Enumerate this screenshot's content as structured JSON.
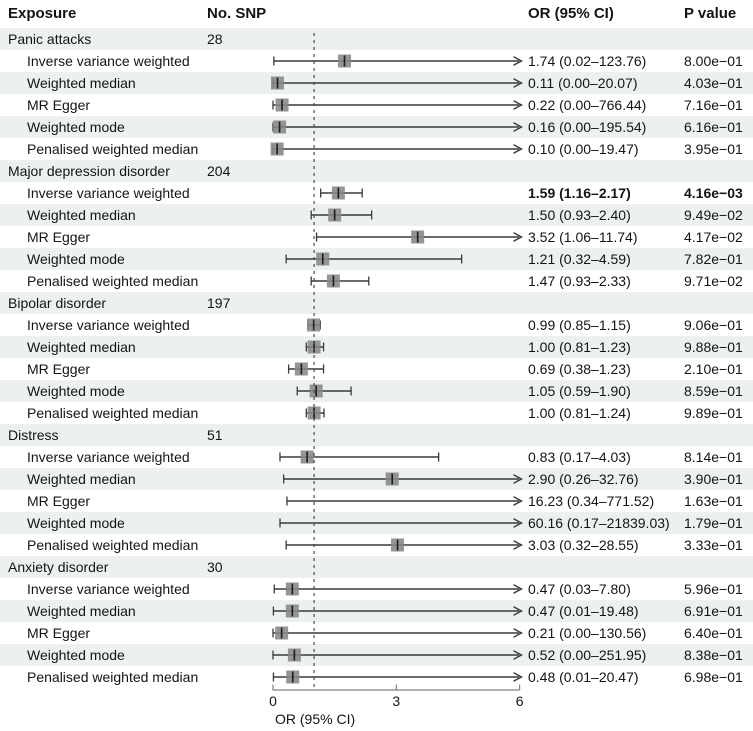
{
  "columns": {
    "exposure": "Exposure",
    "snp": "No. SNP",
    "or": "OR (95% CI)",
    "p": "P value"
  },
  "colors": {
    "stripe": "#ecf0f1",
    "whisker": "#3a3a3a",
    "marker": "#868686",
    "marker_tick": "#1c1c1c",
    "reference_line": "#4a4a4a",
    "axis": "#808080"
  },
  "chart_data": {
    "type": "forest",
    "xlabel": "OR (95% CI)",
    "xlim": [
      0,
      6
    ],
    "xticks": [
      0,
      3,
      6
    ],
    "reference_line": 1,
    "grid": false,
    "groups": [
      {
        "exposure": "Panic attacks",
        "n_snp": "28",
        "methods": [
          {
            "label": "Inverse variance weighted",
            "or": 1.74,
            "lo": 0.02,
            "hi": 123.76,
            "or_text": "1.74 (0.02–123.76)",
            "p_text": "8.00e−01",
            "significant": false
          },
          {
            "label": "Weighted median",
            "or": 0.11,
            "lo": 0.0,
            "hi": 20.07,
            "or_text": "0.11 (0.00–20.07)",
            "p_text": "4.03e−01",
            "significant": false
          },
          {
            "label": "MR Egger",
            "or": 0.22,
            "lo": 0.0,
            "hi": 766.44,
            "or_text": "0.22 (0.00–766.44)",
            "p_text": "7.16e−01",
            "significant": false
          },
          {
            "label": "Weighted mode",
            "or": 0.16,
            "lo": 0.0,
            "hi": 195.54,
            "or_text": "0.16 (0.00–195.54)",
            "p_text": "6.16e−01",
            "significant": false
          },
          {
            "label": "Penalised weighted median",
            "or": 0.1,
            "lo": 0.0,
            "hi": 19.47,
            "or_text": "0.10 (0.00–19.47)",
            "p_text": "3.95e−01",
            "significant": false
          }
        ]
      },
      {
        "exposure": "Major depression disorder",
        "n_snp": "204",
        "methods": [
          {
            "label": "Inverse variance weighted",
            "or": 1.59,
            "lo": 1.16,
            "hi": 2.17,
            "or_text": "1.59 (1.16–2.17)",
            "p_text": "4.16e−03",
            "significant": true
          },
          {
            "label": "Weighted median",
            "or": 1.5,
            "lo": 0.93,
            "hi": 2.4,
            "or_text": "1.50 (0.93–2.40)",
            "p_text": "9.49e−02",
            "significant": false
          },
          {
            "label": "MR Egger",
            "or": 3.52,
            "lo": 1.06,
            "hi": 11.74,
            "or_text": "3.52 (1.06–11.74)",
            "p_text": "4.17e−02",
            "significant": false
          },
          {
            "label": "Weighted mode",
            "or": 1.21,
            "lo": 0.32,
            "hi": 4.59,
            "or_text": "1.21 (0.32–4.59)",
            "p_text": "7.82e−01",
            "significant": false
          },
          {
            "label": "Penalised weighted median",
            "or": 1.47,
            "lo": 0.93,
            "hi": 2.33,
            "or_text": "1.47 (0.93–2.33)",
            "p_text": "9.71e−02",
            "significant": false
          }
        ]
      },
      {
        "exposure": "Bipolar disorder",
        "n_snp": "197",
        "methods": [
          {
            "label": "Inverse variance weighted",
            "or": 0.99,
            "lo": 0.85,
            "hi": 1.15,
            "or_text": "0.99 (0.85–1.15)",
            "p_text": "9.06e−01",
            "significant": false
          },
          {
            "label": "Weighted median",
            "or": 1.0,
            "lo": 0.81,
            "hi": 1.23,
            "or_text": "1.00 (0.81–1.23)",
            "p_text": "9.88e−01",
            "significant": false
          },
          {
            "label": "MR Egger",
            "or": 0.69,
            "lo": 0.38,
            "hi": 1.23,
            "or_text": "0.69 (0.38–1.23)",
            "p_text": "2.10e−01",
            "significant": false
          },
          {
            "label": "Weighted mode",
            "or": 1.05,
            "lo": 0.59,
            "hi": 1.9,
            "or_text": "1.05 (0.59–1.90)",
            "p_text": "8.59e−01",
            "significant": false
          },
          {
            "label": "Penalised weighted median",
            "or": 1.0,
            "lo": 0.81,
            "hi": 1.24,
            "or_text": "1.00 (0.81–1.24)",
            "p_text": "9.89e−01",
            "significant": false
          }
        ]
      },
      {
        "exposure": "Distress",
        "n_snp": "51",
        "methods": [
          {
            "label": "Inverse variance weighted",
            "or": 0.83,
            "lo": 0.17,
            "hi": 4.03,
            "or_text": "0.83 (0.17–4.03)",
            "p_text": "8.14e−01",
            "significant": false
          },
          {
            "label": "Weighted median",
            "or": 2.9,
            "lo": 0.26,
            "hi": 32.76,
            "or_text": "2.90 (0.26–32.76)",
            "p_text": "3.90e−01",
            "significant": false
          },
          {
            "label": "MR Egger",
            "or": 16.23,
            "lo": 0.34,
            "hi": 771.52,
            "or_text": "16.23 (0.34–771.52)",
            "p_text": "1.63e−01",
            "significant": false
          },
          {
            "label": "Weighted mode",
            "or": 60.16,
            "lo": 0.17,
            "hi": 21839.03,
            "or_text": "60.16 (0.17–21839.03)",
            "p_text": "1.79e−01",
            "significant": false
          },
          {
            "label": "Penalised weighted median",
            "or": 3.03,
            "lo": 0.32,
            "hi": 28.55,
            "or_text": "3.03 (0.32–28.55)",
            "p_text": "3.33e−01",
            "significant": false
          }
        ]
      },
      {
        "exposure": "Anxiety disorder",
        "n_snp": "30",
        "methods": [
          {
            "label": "Inverse variance weighted",
            "or": 0.47,
            "lo": 0.03,
            "hi": 7.8,
            "or_text": "0.47 (0.03–7.80)",
            "p_text": "5.96e−01",
            "significant": false
          },
          {
            "label": "Weighted median",
            "or": 0.47,
            "lo": 0.01,
            "hi": 19.48,
            "or_text": "0.47 (0.01–19.48)",
            "p_text": "6.91e−01",
            "significant": false
          },
          {
            "label": "MR Egger",
            "or": 0.21,
            "lo": 0.0,
            "hi": 130.56,
            "or_text": "0.21 (0.00–130.56)",
            "p_text": "6.40e−01",
            "significant": false
          },
          {
            "label": "Weighted mode",
            "or": 0.52,
            "lo": 0.0,
            "hi": 251.95,
            "or_text": "0.52 (0.00–251.95)",
            "p_text": "8.38e−01",
            "significant": false
          },
          {
            "label": "Penalised weighted median",
            "or": 0.48,
            "lo": 0.01,
            "hi": 20.47,
            "or_text": "0.48 (0.01–20.47)",
            "p_text": "6.98e−01",
            "significant": false
          }
        ]
      }
    ]
  }
}
